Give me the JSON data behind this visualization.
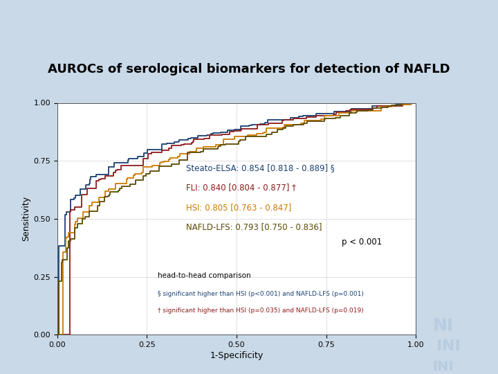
{
  "title": "AUROCs of serological biomarkers for detection of NAFLD",
  "xlabel": "1-Specificity",
  "ylabel": "Sensitivity",
  "slide_bg": "#c9d9e8",
  "content_bg": "#ffffff",
  "header_bg": "#a8bfd4",
  "curves": {
    "Steato-ELSA": {
      "auc": 0.854,
      "color": "#1a3f6f",
      "label": "Steato-ELSA: 0.854 [0.818 - 0.889] §"
    },
    "FLI": {
      "auc": 0.84,
      "color": "#8b1a1a",
      "label": "FLI: 0.840 [0.804 - 0.877] †"
    },
    "HSI": {
      "auc": 0.805,
      "color": "#cc7a00",
      "label": "HSI: 0.805 [0.763 - 0.847]"
    },
    "NAFLD-LFS": {
      "auc": 0.793,
      "color": "#5a4a00",
      "label": "NAFLD-LFS: 0.793 [0.750 - 0.836]"
    }
  },
  "curve_order": [
    "Steato-ELSA",
    "FLI",
    "HSI",
    "NAFLD-LFS"
  ],
  "annotation_p": "p < 0.001",
  "annotation_head": "head-to-head comparison",
  "annotation_s": "§ significant higher than HSI (p<0.001) and NAFLD-LFS (p=0.001)",
  "annotation_t": "† significant higher than HSI (p=0.035) and NAFLD-LFS (p=0.019)",
  "xticks": [
    0.0,
    0.25,
    0.5,
    0.75,
    1.0
  ],
  "yticks": [
    0.0,
    0.25,
    0.5,
    0.75,
    1.0
  ],
  "title_fontsize": 13,
  "axis_label_fontsize": 9,
  "tick_fontsize": 8,
  "legend_fontsize": 8.5,
  "annot_fontsize": 7.5,
  "annot_small_fontsize": 6.5
}
